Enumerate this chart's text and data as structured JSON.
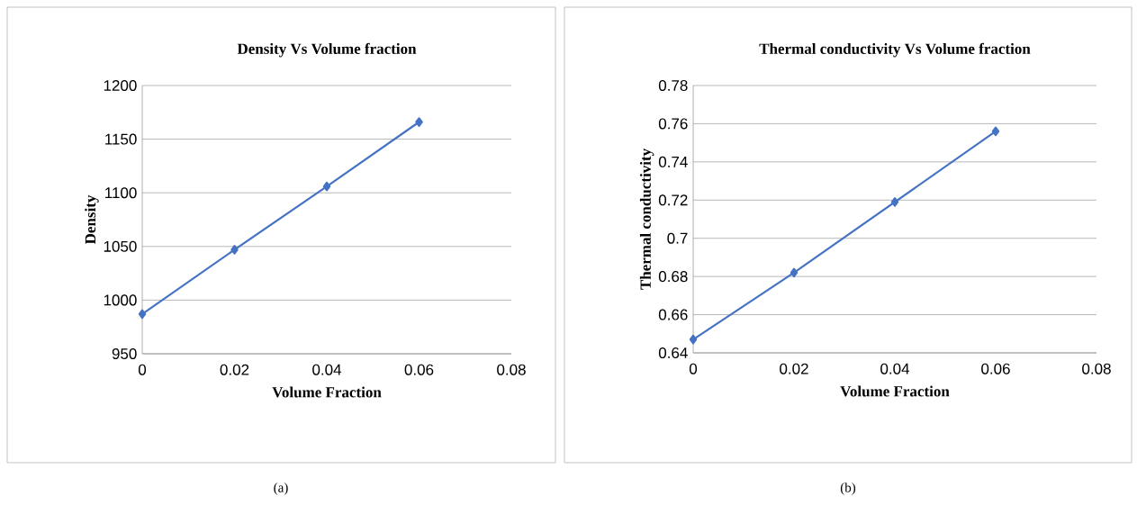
{
  "chart_data": [
    {
      "type": "line",
      "title": "Density Vs Volume fraction",
      "xlabel": "Volume Fraction",
      "ylabel": "Density",
      "x": [
        0,
        0.02,
        0.04,
        0.06
      ],
      "series": [
        {
          "color": "#4472c4",
          "values": [
            987,
            1047,
            1106,
            1166
          ]
        }
      ],
      "xlim": [
        0,
        0.08
      ],
      "ylim": [
        950,
        1200
      ],
      "xticks": [
        0,
        0.02,
        0.04,
        0.06,
        0.08
      ],
      "yticks": [
        950,
        1000,
        1050,
        1100,
        1150,
        1200
      ],
      "grid": "y",
      "marker": "diamond",
      "line_style": "solid",
      "annotations": [
        "(a)"
      ]
    },
    {
      "type": "line",
      "title": "Thermal conductivity Vs Volume fraction",
      "xlabel": "Volume Fraction",
      "ylabel": "Thermal conductivity",
      "x": [
        0,
        0.02,
        0.04,
        0.06
      ],
      "series": [
        {
          "color": "#4472c4",
          "values": [
            0.647,
            0.682,
            0.719,
            0.756
          ]
        }
      ],
      "xlim": [
        0,
        0.08
      ],
      "ylim": [
        0.64,
        0.78
      ],
      "xticks": [
        0,
        0.02,
        0.04,
        0.06,
        0.08
      ],
      "yticks": [
        0.64,
        0.66,
        0.68,
        0.7,
        0.72,
        0.74,
        0.76,
        0.78
      ],
      "grid": "y",
      "marker": "diamond",
      "line_style": "solid",
      "annotations": [
        "(b)"
      ]
    }
  ]
}
